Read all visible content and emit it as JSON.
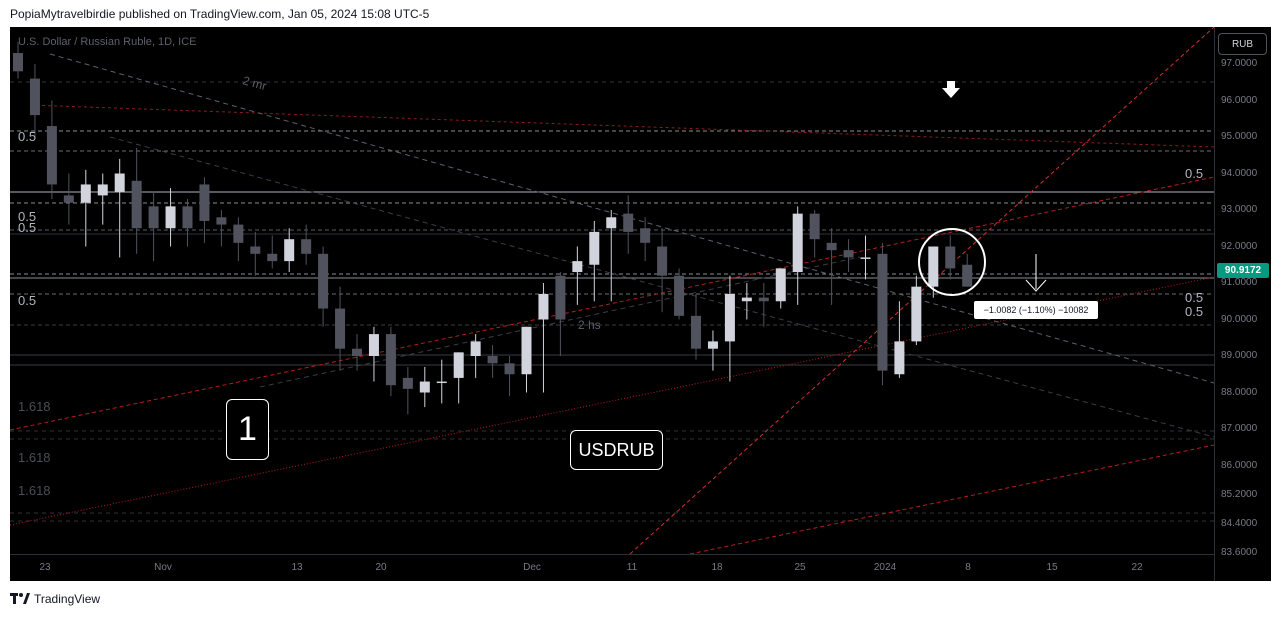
{
  "header": {
    "publisher": "PopiaMytravelbirdie published on TradingView.com, Jan 05, 2024 15:08 UTC-5"
  },
  "footer": {
    "brand": "TradingView",
    "logo_icon": "tradingview-logo-icon"
  },
  "chart": {
    "symbol_title": "U.S. Dollar / Russian Ruble, 1D, ICE",
    "currency_button": "RUB",
    "last_price": "90.9172",
    "symbol_label": "USDRUB",
    "wave_label": "1",
    "measure_text": "−1.0082 (−1.10%) −10082",
    "annotations": {
      "top_left": "2 mr",
      "bottom_middle": "2 hs"
    },
    "fib_labels": [
      {
        "text": "0.5",
        "price": 95.0,
        "side": "left"
      },
      {
        "text": "0.5",
        "price": 92.8,
        "side": "left"
      },
      {
        "text": "0.5",
        "price": 92.5,
        "side": "left"
      },
      {
        "text": "0.5",
        "price": 90.5,
        "side": "left"
      },
      {
        "text": "1.618",
        "price": 87.6,
        "side": "left",
        "dim": true
      },
      {
        "text": "1.618",
        "price": 86.2,
        "side": "left",
        "dim": true
      },
      {
        "text": "1.618",
        "price": 85.3,
        "side": "left",
        "dim": true
      },
      {
        "text": "0.5",
        "price": 94.0,
        "side": "right"
      },
      {
        "text": "0.5",
        "price": 90.6,
        "side": "right"
      },
      {
        "text": "0.5",
        "price": 90.2,
        "side": "right"
      }
    ],
    "colors": {
      "up": "#d1d4dc",
      "down": "#50535e",
      "accent": "#089981",
      "trend": "#b71c1c"
    }
  },
  "chart_data": {
    "type": "candlestick",
    "title": "U.S. Dollar / Russian Ruble, 1D, ICE",
    "ylim": [
      83.0,
      98.0
    ],
    "y_ticks": [
      "97.0000",
      "96.0000",
      "95.0000",
      "94.0000",
      "93.0000",
      "92.0000",
      "91.0000",
      "90.0000",
      "89.0000",
      "88.0000",
      "87.0000",
      "86.0000",
      "85.2000",
      "84.4000",
      "83.6000"
    ],
    "x_ticks": [
      "23",
      "Nov",
      "13",
      "20",
      "Dec",
      "11",
      "18",
      "25",
      "2024",
      "8",
      "15",
      "22"
    ],
    "candles": [
      {
        "o": 97.3,
        "h": 97.6,
        "l": 96.6,
        "c": 96.8
      },
      {
        "o": 96.6,
        "h": 97.0,
        "l": 95.0,
        "c": 95.6
      },
      {
        "o": 95.3,
        "h": 96.0,
        "l": 93.3,
        "c": 93.7
      },
      {
        "o": 93.4,
        "h": 94.0,
        "l": 92.6,
        "c": 93.2
      },
      {
        "o": 93.2,
        "h": 94.1,
        "l": 92.0,
        "c": 93.7
      },
      {
        "o": 93.4,
        "h": 94.0,
        "l": 92.6,
        "c": 93.7
      },
      {
        "o": 93.5,
        "h": 94.4,
        "l": 91.7,
        "c": 94.0
      },
      {
        "o": 93.8,
        "h": 94.7,
        "l": 91.8,
        "c": 92.5
      },
      {
        "o": 93.1,
        "h": 93.5,
        "l": 91.6,
        "c": 92.5
      },
      {
        "o": 92.5,
        "h": 93.6,
        "l": 92.0,
        "c": 93.1
      },
      {
        "o": 93.1,
        "h": 93.3,
        "l": 92.0,
        "c": 92.5
      },
      {
        "o": 93.7,
        "h": 93.9,
        "l": 92.1,
        "c": 92.7
      },
      {
        "o": 92.8,
        "h": 93.0,
        "l": 92.0,
        "c": 92.6
      },
      {
        "o": 92.6,
        "h": 92.8,
        "l": 91.6,
        "c": 92.1
      },
      {
        "o": 92.0,
        "h": 92.4,
        "l": 91.2,
        "c": 91.8
      },
      {
        "o": 91.8,
        "h": 92.3,
        "l": 91.4,
        "c": 91.6
      },
      {
        "o": 91.6,
        "h": 92.5,
        "l": 91.3,
        "c": 92.2
      },
      {
        "o": 92.2,
        "h": 92.6,
        "l": 91.5,
        "c": 91.8
      },
      {
        "o": 91.8,
        "h": 92.0,
        "l": 89.8,
        "c": 90.3
      },
      {
        "o": 90.3,
        "h": 90.9,
        "l": 88.6,
        "c": 89.2
      },
      {
        "o": 89.2,
        "h": 89.6,
        "l": 88.6,
        "c": 89.0
      },
      {
        "o": 89.0,
        "h": 89.8,
        "l": 88.3,
        "c": 89.6
      },
      {
        "o": 89.6,
        "h": 89.8,
        "l": 87.9,
        "c": 88.2
      },
      {
        "o": 88.4,
        "h": 88.7,
        "l": 87.4,
        "c": 88.1
      },
      {
        "o": 88.0,
        "h": 88.7,
        "l": 87.6,
        "c": 88.3
      },
      {
        "o": 88.3,
        "h": 88.9,
        "l": 87.7,
        "c": 88.3
      },
      {
        "o": 88.4,
        "h": 89.1,
        "l": 87.7,
        "c": 89.1
      },
      {
        "o": 89.0,
        "h": 89.6,
        "l": 88.4,
        "c": 89.4
      },
      {
        "o": 89.0,
        "h": 89.3,
        "l": 88.4,
        "c": 88.8
      },
      {
        "o": 88.8,
        "h": 89.0,
        "l": 87.9,
        "c": 88.5
      },
      {
        "o": 88.5,
        "h": 89.8,
        "l": 88.0,
        "c": 89.8
      },
      {
        "o": 90.0,
        "h": 91.0,
        "l": 88.0,
        "c": 90.7
      },
      {
        "o": 91.2,
        "h": 91.3,
        "l": 89.0,
        "c": 90.0
      },
      {
        "o": 91.3,
        "h": 92.0,
        "l": 90.4,
        "c": 91.6
      },
      {
        "o": 91.5,
        "h": 92.7,
        "l": 90.5,
        "c": 92.4
      },
      {
        "o": 92.5,
        "h": 93.0,
        "l": 90.5,
        "c": 92.8
      },
      {
        "o": 92.9,
        "h": 93.4,
        "l": 91.8,
        "c": 92.4
      },
      {
        "o": 92.5,
        "h": 92.8,
        "l": 91.6,
        "c": 92.1
      },
      {
        "o": 92.0,
        "h": 92.5,
        "l": 90.2,
        "c": 91.2
      },
      {
        "o": 91.2,
        "h": 91.4,
        "l": 90.0,
        "c": 90.1
      },
      {
        "o": 90.1,
        "h": 90.7,
        "l": 88.9,
        "c": 89.2
      },
      {
        "o": 89.2,
        "h": 89.7,
        "l": 88.6,
        "c": 89.4
      },
      {
        "o": 89.4,
        "h": 91.2,
        "l": 88.3,
        "c": 90.7
      },
      {
        "o": 90.5,
        "h": 91.0,
        "l": 90.0,
        "c": 90.6
      },
      {
        "o": 90.6,
        "h": 91.0,
        "l": 89.8,
        "c": 90.5
      },
      {
        "o": 90.5,
        "h": 91.3,
        "l": 90.3,
        "c": 91.4
      },
      {
        "o": 91.3,
        "h": 93.1,
        "l": 90.4,
        "c": 92.9
      },
      {
        "o": 92.9,
        "h": 93.0,
        "l": 91.7,
        "c": 92.2
      },
      {
        "o": 92.1,
        "h": 92.5,
        "l": 90.4,
        "c": 91.9
      },
      {
        "o": 91.9,
        "h": 92.2,
        "l": 91.3,
        "c": 91.7
      },
      {
        "o": 91.7,
        "h": 92.3,
        "l": 91.1,
        "c": 91.7
      },
      {
        "o": 91.8,
        "h": 92.1,
        "l": 88.2,
        "c": 88.6
      },
      {
        "o": 88.5,
        "h": 90.5,
        "l": 88.4,
        "c": 89.4
      },
      {
        "o": 89.4,
        "h": 91.2,
        "l": 89.3,
        "c": 90.9
      },
      {
        "o": 90.9,
        "h": 92.0,
        "l": 90.6,
        "c": 92.0
      },
      {
        "o": 92.0,
        "h": 92.3,
        "l": 91.1,
        "c": 91.4
      },
      {
        "o": 91.5,
        "h": 91.8,
        "l": 90.9,
        "c": 90.9
      }
    ]
  }
}
